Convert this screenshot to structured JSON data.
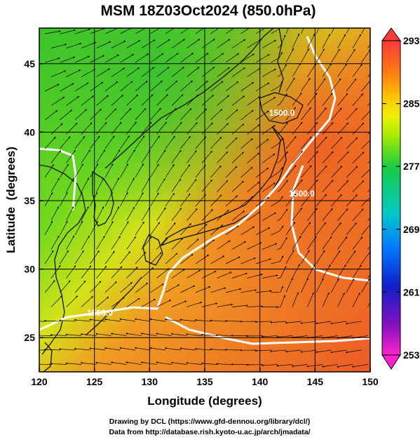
{
  "chart_data": {
    "type": "heatmap",
    "title": "MSM 18Z03Oct2024 (850.0hPa)",
    "xlabel": "Longitude (degrees)",
    "ylabel": "Latitude  (degrees)",
    "xlim": [
      120,
      150
    ],
    "ylim": [
      22.5,
      47.6
    ],
    "x_ticks": [
      120,
      125,
      130,
      135,
      140,
      145,
      150
    ],
    "y_ticks": [
      25,
      30,
      35,
      40,
      45
    ],
    "grid": true,
    "colorbar": {
      "labels": [
        293,
        285,
        277,
        269,
        261,
        253
      ],
      "min": 253,
      "max": 293,
      "colors": [
        "#ff3a3a",
        "#ff7a10",
        "#ffc400",
        "#f0f000",
        "#6ee600",
        "#1ccc40",
        "#00c8c8",
        "#0078ff",
        "#1020c8",
        "#8010c0",
        "#ff22cc"
      ]
    },
    "contour_labels": [
      {
        "text": "1500.0",
        "lon": 142.0,
        "lat": 41.2
      },
      {
        "text": "1500.0",
        "lon": 143.8,
        "lat": 35.3
      },
      {
        "text": "1500.0",
        "lon": 125.5,
        "lat": 26.6
      }
    ],
    "footer": [
      "Drawing by DCL (https://www.gfd-dennou.org/library/dcl/)",
      "Data from http://database.rish.kyoto-u.ac.jp/arch/jmadata/"
    ]
  }
}
